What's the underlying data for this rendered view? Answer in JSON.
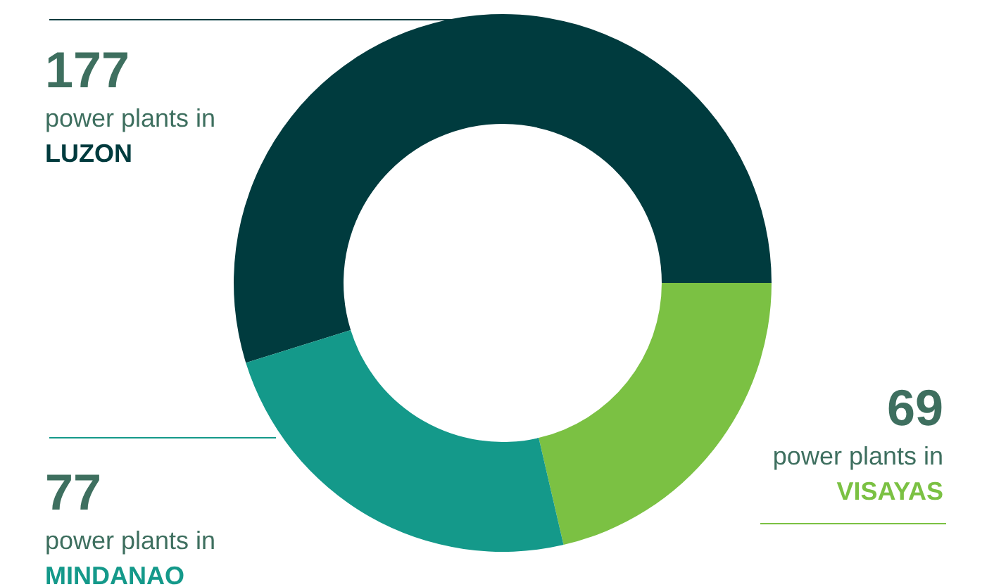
{
  "chart_data": {
    "type": "donut",
    "categories": [
      "LUZON",
      "VISAYAS",
      "MINDANAO"
    ],
    "values": [
      177,
      69,
      77
    ],
    "colors": [
      "#003b3e",
      "#7bc143",
      "#14998a"
    ],
    "data_labels": true,
    "annotations": [
      "power plants in",
      "power plants in",
      "power plants in"
    ]
  }
}
